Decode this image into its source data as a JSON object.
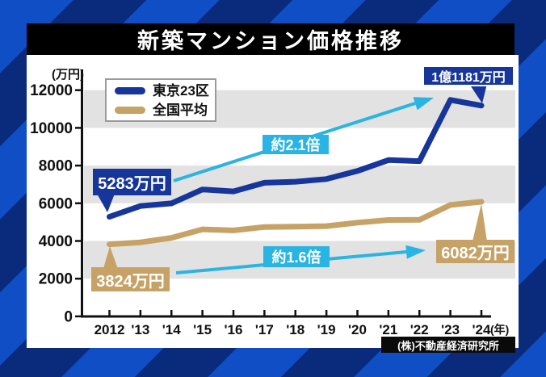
{
  "title": {
    "text": "新築マンション価格推移"
  },
  "legend": {
    "items": [
      {
        "id": "tokyo",
        "label": "東京23区",
        "color": "#17369b"
      },
      {
        "id": "national",
        "label": "全国平均",
        "color": "#c7a266"
      }
    ]
  },
  "axes": {
    "unit_label": "(万円)",
    "y_ticks": [
      "12000",
      "10000",
      "8000",
      "6000",
      "4000",
      "2000",
      "0"
    ],
    "x_ticks": [
      "2012",
      "'13",
      "'14",
      "'15",
      "'16",
      "'17",
      "'18",
      "'19",
      "'20",
      "'21",
      "'22",
      "'23",
      "'24"
    ],
    "x_suffix": "(年)"
  },
  "annotations": {
    "tokyo_start": {
      "text": "5283万円"
    },
    "tokyo_end": {
      "text": "1億1181万円"
    },
    "national_start": {
      "text": "3824万円"
    },
    "national_end": {
      "text": "6082万円"
    },
    "tokyo_ratio": {
      "text": "約2.1倍"
    },
    "national_ratio": {
      "text": "約1.6倍"
    }
  },
  "source": {
    "text": "(株)不動産経済研究所"
  },
  "colors": {
    "tokyo": "#17369b",
    "national": "#c7a266",
    "arrow": "#2ab4e4",
    "band": "#e2e2e3",
    "stripe_light": "#0f4ec5",
    "stripe_dark": "#0a2b7c",
    "banner_bg": "#000000",
    "panel_bg": "#ffffff",
    "axis": "#111111"
  },
  "chart_data": {
    "type": "line",
    "title": "新築マンション価格推移",
    "unit": "万円",
    "x": [
      2012,
      2013,
      2014,
      2015,
      2016,
      2017,
      2018,
      2019,
      2020,
      2021,
      2022,
      2023,
      2024
    ],
    "series": [
      {
        "id": "tokyo",
        "name": "東京23区",
        "color": "#17369b",
        "values": [
          5283,
          5853,
          5994,
          6732,
          6629,
          7089,
          7142,
          7286,
          7712,
          8293,
          8236,
          11483,
          11181
        ]
      },
      {
        "id": "national",
        "name": "全国平均",
        "color": "#c7a266",
        "values": [
          3824,
          3929,
          4166,
          4618,
          4560,
          4739,
          4759,
          4787,
          4971,
          5115,
          5121,
          5911,
          6082
        ]
      }
    ],
    "ylim": [
      0,
      12000
    ],
    "y_tick_step": 2000,
    "gray_bands": [
      [
        10000,
        12000
      ],
      [
        6000,
        8000
      ],
      [
        2000,
        4000
      ]
    ],
    "grid": "banded",
    "legend_position": "top-left",
    "annotated_values": {
      "tokyo_2012": 5283,
      "tokyo_2024": 11181,
      "national_2012": 3824,
      "national_2024": 6082
    },
    "ratio_labels": {
      "tokyo": "約2.1倍",
      "national": "約1.6倍"
    },
    "source": "(株)不動産経済研究所"
  }
}
